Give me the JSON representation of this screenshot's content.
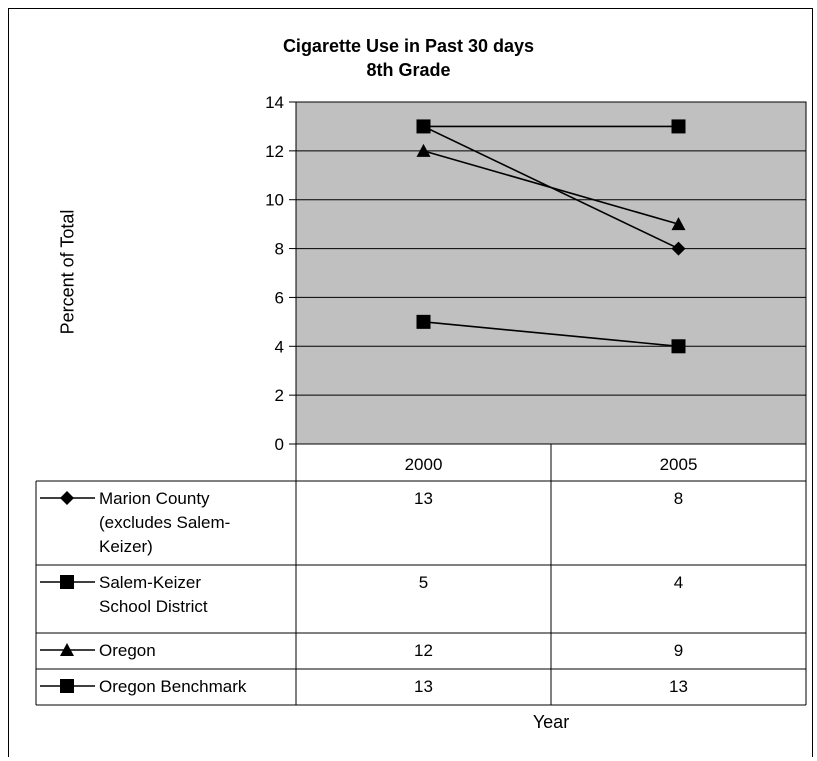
{
  "chart_data": {
    "type": "line",
    "title": "Cigarette Use in Past 30 days",
    "subtitle": "8th Grade",
    "xlabel": "Year",
    "ylabel": "Percent of Total",
    "categories": [
      "2000",
      "2005"
    ],
    "ylim": [
      0,
      14
    ],
    "yticks": [
      0,
      2,
      4,
      6,
      8,
      10,
      12,
      14
    ],
    "grid": true,
    "plot_background": "#c0c0c0",
    "legend": "data-table-below",
    "series": [
      {
        "name": "Marion County (excludes Salem-Keizer)",
        "name_lines": [
          "Marion County",
          "(excludes Salem-",
          "Keizer)"
        ],
        "marker": "diamond",
        "values": [
          13,
          8
        ]
      },
      {
        "name": "Salem-Keizer School District",
        "name_lines": [
          "Salem-Keizer",
          "School District"
        ],
        "marker": "square",
        "values": [
          5,
          4
        ]
      },
      {
        "name": "Oregon",
        "name_lines": [
          "Oregon"
        ],
        "marker": "triangle",
        "values": [
          12,
          9
        ]
      },
      {
        "name": "Oregon Benchmark",
        "name_lines": [
          "Oregon Benchmark"
        ],
        "marker": "square",
        "values": [
          13,
          13
        ]
      }
    ]
  }
}
